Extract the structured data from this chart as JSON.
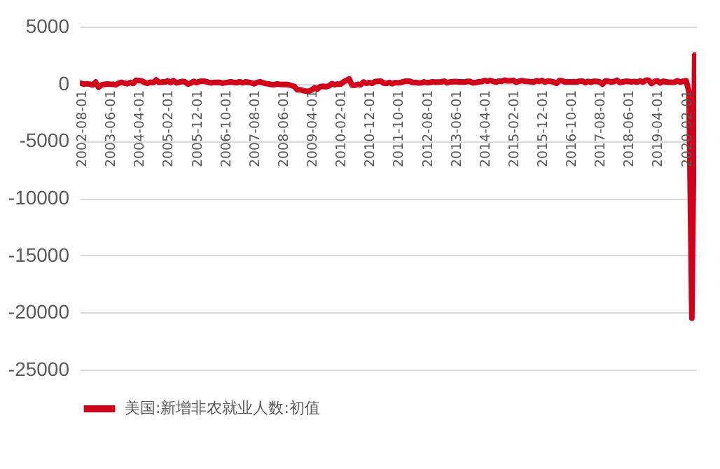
{
  "chart_data": {
    "type": "line",
    "categories": [
      "2002-08-01",
      null,
      null,
      null,
      null,
      null,
      null,
      null,
      null,
      null,
      "2003-06-01",
      null,
      null,
      null,
      null,
      null,
      null,
      null,
      null,
      null,
      "2004-04-01",
      null,
      null,
      null,
      null,
      null,
      null,
      null,
      null,
      null,
      "2005-02-01",
      null,
      null,
      null,
      null,
      null,
      null,
      null,
      null,
      null,
      "2005-12-01",
      null,
      null,
      null,
      null,
      null,
      null,
      null,
      null,
      null,
      "2006-10-01",
      null,
      null,
      null,
      null,
      null,
      null,
      null,
      null,
      null,
      "2007-08-01",
      null,
      null,
      null,
      null,
      null,
      null,
      null,
      null,
      null,
      "2008-06-01",
      null,
      null,
      null,
      null,
      null,
      null,
      null,
      null,
      null,
      "2009-04-01",
      null,
      null,
      null,
      null,
      null,
      null,
      null,
      null,
      null,
      "2010-02-01",
      null,
      null,
      null,
      null,
      null,
      null,
      null,
      null,
      null,
      "2010-12-01",
      null,
      null,
      null,
      null,
      null,
      null,
      null,
      null,
      null,
      "2011-10-01",
      null,
      null,
      null,
      null,
      null,
      null,
      null,
      null,
      null,
      "2012-08-01",
      null,
      null,
      null,
      null,
      null,
      null,
      null,
      null,
      null,
      "2013-06-01",
      null,
      null,
      null,
      null,
      null,
      null,
      null,
      null,
      null,
      "2014-04-01",
      null,
      null,
      null,
      null,
      null,
      null,
      null,
      null,
      null,
      "2015-02-01",
      null,
      null,
      null,
      null,
      null,
      null,
      null,
      null,
      null,
      "2015-12-01",
      null,
      null,
      null,
      null,
      null,
      null,
      null,
      null,
      null,
      "2016-10-01",
      null,
      null,
      null,
      null,
      null,
      null,
      null,
      null,
      null,
      "2017-08-01",
      null,
      null,
      null,
      null,
      null,
      null,
      null,
      null,
      null,
      "2018-06-01",
      null,
      null,
      null,
      null,
      null,
      null,
      null,
      null,
      null,
      "2019-04-01",
      null,
      null,
      null,
      null,
      null,
      null,
      null,
      null,
      null,
      "2020-02-01",
      null,
      null,
      null
    ],
    "series": [
      {
        "name": "美国:新增非农就业人数:初值",
        "color": "#d0021b",
        "values": [
          39,
          -43,
          5,
          -40,
          -101,
          143,
          -308,
          -108,
          -48,
          -17,
          -30,
          -44,
          -93,
          57,
          126,
          57,
          1,
          112,
          21,
          308,
          288,
          248,
          112,
          32,
          144,
          96,
          337,
          112,
          157,
          146,
          262,
          110,
          274,
          78,
          146,
          207,
          169,
          -35,
          56,
          215,
          108,
          193,
          243,
          211,
          138,
          75,
          121,
          113,
          128,
          51,
          92,
          132,
          167,
          111,
          97,
          180,
          88,
          157,
          132,
          92,
          -4,
          110,
          166,
          94,
          18,
          -17,
          -63,
          -80,
          -20,
          -49,
          -62,
          -51,
          -84,
          -159,
          -240,
          -533,
          -524,
          -598,
          -651,
          -663,
          -539,
          -345,
          -467,
          -247,
          -216,
          -263,
          -190,
          11,
          -85,
          -20,
          -36,
          162,
          290,
          431,
          -125,
          -131,
          -54,
          -95,
          151,
          39,
          103,
          36,
          192,
          216,
          244,
          54,
          18,
          117,
          0,
          103,
          80,
          120,
          200,
          243,
          227,
          120,
          115,
          69,
          80,
          163,
          96,
          114,
          171,
          146,
          155,
          157,
          236,
          88,
          165,
          175,
          195,
          162,
          169,
          148,
          204,
          203,
          74,
          113,
          175,
          192,
          288,
          217,
          288,
          209,
          142,
          248,
          214,
          321,
          252,
          257,
          295,
          126,
          223,
          280,
          223,
          215,
          173,
          142,
          271,
          211,
          292,
          151,
          242,
          215,
          160,
          38,
          287,
          255,
          151,
          156,
          161,
          178,
          156,
          227,
          235,
          98,
          211,
          138,
          222,
          209,
          156,
          -33,
          261,
          228,
          148,
          200,
          313,
          103,
          164,
          223,
          213,
          157,
          201,
          134,
          250,
          155,
          312,
          304,
          20,
          196,
          263,
          75,
          224,
          164,
          130,
          136,
          128,
          266,
          145,
          225,
          273,
          -701,
          -20500,
          2509
        ]
      }
    ],
    "ylim": [
      -25000,
      5000
    ],
    "yticks": [
      -25000,
      -20000,
      -15000,
      -10000,
      -5000,
      0,
      5000
    ],
    "grid": "y",
    "legend": "bottom",
    "marker": "none"
  }
}
